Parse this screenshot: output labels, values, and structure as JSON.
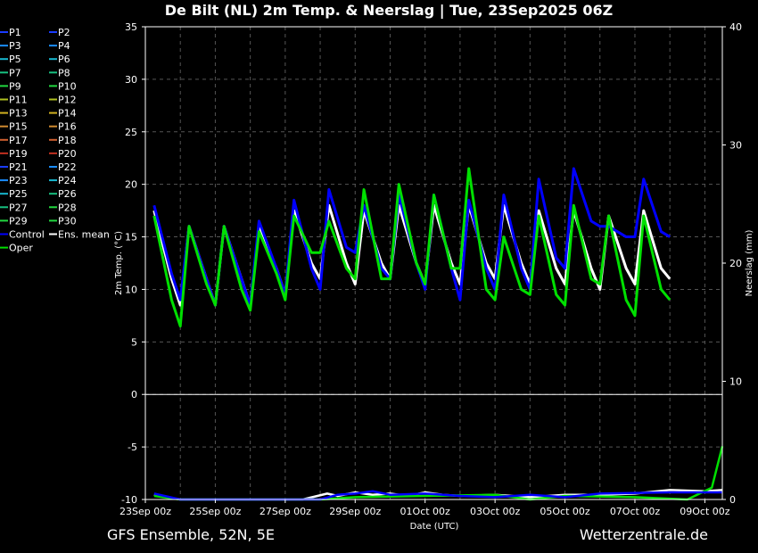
{
  "chart_data": {
    "type": "line",
    "title": "De Bilt  (NL)  2m Temp. & Neerslag | Tue, 23Sep2025 06Z",
    "xlabel": "Date (UTC)",
    "ylabel": "2m Temp. (°C)",
    "y2label": "Neerslag (mm)",
    "footer_left": "GFS Ensemble, 52N, 5E",
    "footer_right": "Wetterzentrale.de",
    "x_tick_labels": [
      "23Sep 00z",
      "25Sep 00z",
      "27Sep 00z",
      "29Sep 00z",
      "01Oct 00z",
      "03Oct 00z",
      "05Oct 00z",
      "07Oct 00z",
      "09Oct 00z"
    ],
    "y_ticks": [
      35,
      30,
      25,
      20,
      15,
      10,
      5,
      0,
      -5,
      -10
    ],
    "y2_ticks": [
      40,
      30,
      20,
      10,
      0
    ],
    "ylim": [
      -10,
      35
    ],
    "y2lim": [
      0,
      40
    ],
    "grid": true,
    "legend_position": "left",
    "legend": [
      "P1",
      "P2",
      "P3",
      "P4",
      "P5",
      "P6",
      "P7",
      "P8",
      "P9",
      "P10",
      "P11",
      "P12",
      "P13",
      "P14",
      "P15",
      "P16",
      "P17",
      "P18",
      "P19",
      "P20",
      "P21",
      "P22",
      "P23",
      "P24",
      "P25",
      "P26",
      "P27",
      "P28",
      "P29",
      "P30",
      "Control",
      "Ens. mean",
      "Oper"
    ],
    "legend_colors": [
      "#1a3cff",
      "#1a3cff",
      "#1a8cff",
      "#1a8cff",
      "#18b8d0",
      "#18b8d0",
      "#18c080",
      "#18c080",
      "#22d840",
      "#22d840",
      "#b0c020",
      "#b0c020",
      "#d0b020",
      "#d0b020",
      "#d08a30",
      "#d08a30",
      "#d06030",
      "#d06030",
      "#c03020",
      "#c03020",
      "#1a3cff",
      "#1a8cff",
      "#1a8cff",
      "#18b8d0",
      "#18b8d0",
      "#18c080",
      "#18c080",
      "#22d840",
      "#22d840",
      "#22d840",
      "#0000ff",
      "#ffffff",
      "#00e000"
    ],
    "days_axis": [
      0,
      16.5
    ],
    "temp_series": [
      {
        "name": "Ens. mean",
        "points": [
          [
            0.25,
            17.5
          ],
          [
            0.75,
            11
          ],
          [
            1.0,
            8.5
          ],
          [
            1.25,
            16
          ],
          [
            1.75,
            11
          ],
          [
            2.0,
            8.5
          ],
          [
            2.25,
            16
          ],
          [
            2.75,
            11
          ],
          [
            3.0,
            8.5
          ],
          [
            3.25,
            16
          ],
          [
            3.75,
            12
          ],
          [
            4.0,
            9.5
          ],
          [
            4.25,
            17.5
          ],
          [
            4.75,
            12.5
          ],
          [
            5.0,
            11
          ],
          [
            5.25,
            18
          ],
          [
            5.75,
            12.5
          ],
          [
            6.0,
            10.5
          ],
          [
            6.25,
            17.5
          ],
          [
            6.75,
            12.5
          ],
          [
            7.0,
            11
          ],
          [
            7.25,
            18
          ],
          [
            7.75,
            12.5
          ],
          [
            8.0,
            10.5
          ],
          [
            8.25,
            18
          ],
          [
            8.75,
            12.5
          ],
          [
            9.0,
            10.5
          ],
          [
            9.25,
            18
          ],
          [
            9.75,
            12.5
          ],
          [
            10.0,
            11
          ],
          [
            10.25,
            18
          ],
          [
            10.75,
            12.5
          ],
          [
            11.0,
            10.5
          ],
          [
            11.25,
            17.5
          ],
          [
            11.75,
            12
          ],
          [
            12.0,
            10.5
          ],
          [
            12.25,
            17.5
          ],
          [
            12.75,
            12
          ],
          [
            13.0,
            10
          ],
          [
            13.25,
            17
          ],
          [
            13.75,
            12
          ],
          [
            14.0,
            10.5
          ],
          [
            14.25,
            17.5
          ],
          [
            14.75,
            12
          ],
          [
            15.0,
            11
          ]
        ]
      },
      {
        "name": "Control",
        "points": [
          [
            0.25,
            18
          ],
          [
            0.75,
            11.5
          ],
          [
            1.0,
            9
          ],
          [
            1.25,
            16
          ],
          [
            1.75,
            11
          ],
          [
            2.0,
            8.5
          ],
          [
            2.25,
            16
          ],
          [
            2.75,
            11
          ],
          [
            3.0,
            8.5
          ],
          [
            3.25,
            16.5
          ],
          [
            3.75,
            12
          ],
          [
            4.0,
            9.5
          ],
          [
            4.25,
            18.5
          ],
          [
            4.75,
            12
          ],
          [
            5.0,
            10
          ],
          [
            5.25,
            19.5
          ],
          [
            5.75,
            14
          ],
          [
            6.0,
            13.5
          ],
          [
            6.25,
            18
          ],
          [
            6.75,
            12
          ],
          [
            7.0,
            11
          ],
          [
            7.25,
            19
          ],
          [
            7.75,
            12.5
          ],
          [
            8.0,
            10
          ],
          [
            8.25,
            19
          ],
          [
            8.75,
            12
          ],
          [
            9.0,
            9
          ],
          [
            9.25,
            18.5
          ],
          [
            9.75,
            12
          ],
          [
            10.0,
            10
          ],
          [
            10.25,
            19
          ],
          [
            10.75,
            12
          ],
          [
            11.0,
            10
          ],
          [
            11.25,
            20.5
          ],
          [
            11.75,
            13
          ],
          [
            12.0,
            12
          ],
          [
            12.25,
            21.5
          ],
          [
            12.75,
            16.5
          ],
          [
            13.0,
            16
          ],
          [
            13.25,
            16
          ],
          [
            13.75,
            15
          ],
          [
            14.0,
            15
          ],
          [
            14.25,
            20.5
          ],
          [
            14.75,
            15.5
          ],
          [
            15.0,
            15
          ]
        ]
      },
      {
        "name": "Oper",
        "points": [
          [
            0.25,
            17
          ],
          [
            0.75,
            9
          ],
          [
            1.0,
            6.5
          ],
          [
            1.25,
            16
          ],
          [
            1.75,
            10.5
          ],
          [
            2.0,
            8.5
          ],
          [
            2.25,
            16
          ],
          [
            2.75,
            10
          ],
          [
            3.0,
            8
          ],
          [
            3.25,
            15.5
          ],
          [
            3.75,
            11.5
          ],
          [
            4.0,
            9
          ],
          [
            4.25,
            17
          ],
          [
            4.75,
            13.5
          ],
          [
            5.0,
            13.5
          ],
          [
            5.25,
            16.5
          ],
          [
            5.75,
            12
          ],
          [
            6.0,
            11
          ],
          [
            6.25,
            19.5
          ],
          [
            6.75,
            11
          ],
          [
            7.0,
            11
          ],
          [
            7.25,
            20
          ],
          [
            7.75,
            12.5
          ],
          [
            8.0,
            10.5
          ],
          [
            8.25,
            19
          ],
          [
            8.75,
            12
          ],
          [
            9.0,
            12
          ],
          [
            9.25,
            21.5
          ],
          [
            9.75,
            10
          ],
          [
            10.0,
            9
          ],
          [
            10.25,
            15
          ],
          [
            10.75,
            10
          ],
          [
            11.0,
            9.5
          ],
          [
            11.25,
            17
          ],
          [
            11.75,
            9.5
          ],
          [
            12.0,
            8.5
          ],
          [
            12.25,
            18
          ],
          [
            12.75,
            11
          ],
          [
            13.0,
            10.5
          ],
          [
            13.25,
            17
          ],
          [
            13.75,
            9
          ],
          [
            14.0,
            7.5
          ],
          [
            14.25,
            17
          ],
          [
            14.75,
            10
          ],
          [
            15.0,
            9
          ]
        ]
      }
    ],
    "precip_series": [
      {
        "name": "Ens. mean",
        "points": [
          [
            0.25,
            0.4
          ],
          [
            1.0,
            0
          ],
          [
            4.5,
            0
          ],
          [
            5.2,
            0.5
          ],
          [
            5.5,
            0.3
          ],
          [
            6.0,
            0.6
          ],
          [
            6.5,
            0.4
          ],
          [
            7.0,
            0.5
          ],
          [
            7.5,
            0.3
          ],
          [
            8.0,
            0.6
          ],
          [
            8.5,
            0.4
          ],
          [
            9.0,
            0.3
          ],
          [
            10.0,
            0.4
          ],
          [
            11.0,
            0.2
          ],
          [
            12.0,
            0.4
          ],
          [
            13.0,
            0.4
          ],
          [
            14.0,
            0.5
          ],
          [
            15.0,
            0.8
          ],
          [
            16.0,
            0.7
          ],
          [
            16.5,
            0.8
          ]
        ]
      },
      {
        "name": "Oper",
        "points": [
          [
            0.25,
            0.3
          ],
          [
            1.0,
            0
          ],
          [
            5.0,
            0
          ],
          [
            6.0,
            0.2
          ],
          [
            8.0,
            0.3
          ],
          [
            10.0,
            0.4
          ],
          [
            11.0,
            0
          ],
          [
            12.0,
            0.3
          ],
          [
            14.0,
            0.2
          ],
          [
            15.5,
            0
          ],
          [
            16.2,
            1
          ],
          [
            16.5,
            4.5
          ]
        ]
      },
      {
        "name": "Control",
        "points": [
          [
            0.25,
            0.5
          ],
          [
            1.0,
            0
          ],
          [
            5.0,
            0
          ],
          [
            5.5,
            0.4
          ],
          [
            6.0,
            0.5
          ],
          [
            6.5,
            0.7
          ],
          [
            7.0,
            0.4
          ],
          [
            8.0,
            0.5
          ],
          [
            9.0,
            0.3
          ],
          [
            10.0,
            0.2
          ],
          [
            11.0,
            0.4
          ],
          [
            12.0,
            0.2
          ],
          [
            13.0,
            0.5
          ],
          [
            15.0,
            0.6
          ],
          [
            16.5,
            0.6
          ]
        ]
      }
    ]
  }
}
